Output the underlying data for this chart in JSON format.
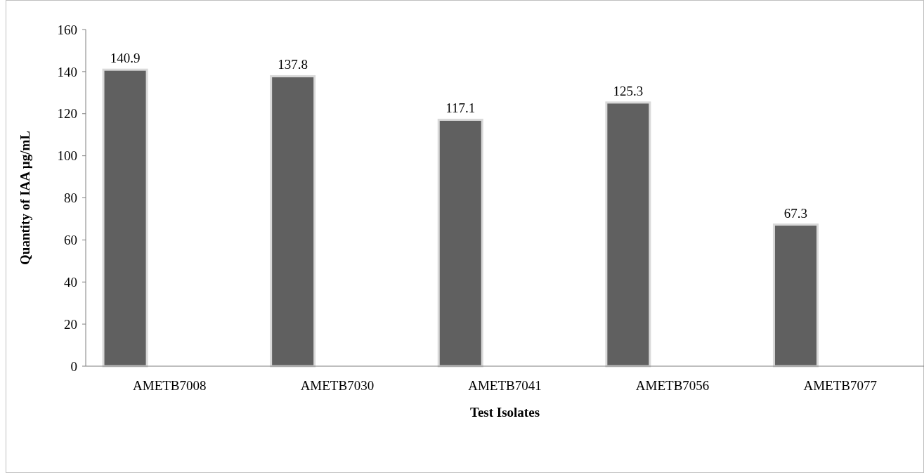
{
  "chart_data": {
    "type": "bar",
    "xlabel": "Test Isolates",
    "ylabel": "Quantity of IAA  µg/mL",
    "categories": [
      "AMETB7008",
      "AMETB7030",
      "AMETB7041",
      "AMETB7056",
      "AMETB7077"
    ],
    "values": [
      140.9,
      137.8,
      117.1,
      125.3,
      67.3
    ],
    "color": "#606060",
    "ylim": [
      0,
      160
    ],
    "yticks": [
      0,
      20,
      40,
      60,
      80,
      100,
      120,
      140,
      160
    ],
    "data_labels": true,
    "grid": false
  }
}
